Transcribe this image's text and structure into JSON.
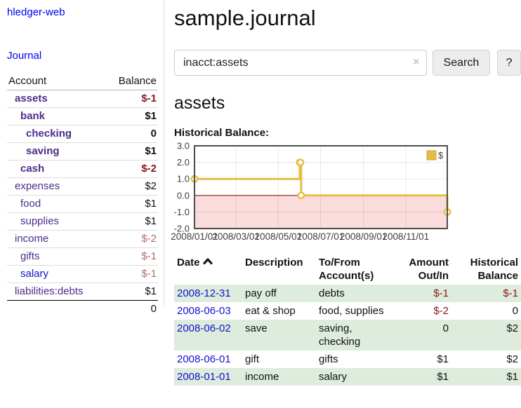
{
  "colors": {
    "link_purple": "#4d2d8c",
    "link_blue": "#1212cc",
    "neg_bold": "#8c1515",
    "neg_soft": "#b36b6b",
    "text_dark": "#111111",
    "row_green": "#ddecdd",
    "chart_line": "#e6bd45",
    "chart_fill_negative": "#fbdcdc",
    "zero_line": "#8c1a1a",
    "axis_text": "#3c3c3c"
  },
  "sidebar": {
    "brand": "hledger-web",
    "nav": {
      "journal": "Journal"
    },
    "accounts": {
      "col_account": "Account",
      "col_balance": "Balance",
      "rows": [
        {
          "name": "assets",
          "level": 1,
          "bold": true,
          "balance": "$-1",
          "negative": true,
          "blue": false
        },
        {
          "name": "bank",
          "level": 2,
          "bold": true,
          "balance": "$1",
          "negative": false,
          "blue": false
        },
        {
          "name": "checking",
          "level": 3,
          "bold": true,
          "balance": "0",
          "negative": false,
          "blue": false
        },
        {
          "name": "saving",
          "level": 3,
          "bold": true,
          "balance": "$1",
          "negative": false,
          "blue": false
        },
        {
          "name": "cash",
          "level": 2,
          "bold": true,
          "balance": "$-2",
          "negative": true,
          "blue": false
        },
        {
          "name": "expenses",
          "level": 1,
          "bold": false,
          "balance": "$2",
          "negative": false,
          "blue": false
        },
        {
          "name": "food",
          "level": 2,
          "bold": false,
          "balance": "$1",
          "negative": false,
          "blue": false
        },
        {
          "name": "supplies",
          "level": 2,
          "bold": false,
          "balance": "$1",
          "negative": false,
          "blue": false
        },
        {
          "name": "income",
          "level": 1,
          "bold": false,
          "balance": "$-2",
          "negative": true,
          "blue": false
        },
        {
          "name": "gifts",
          "level": 2,
          "bold": false,
          "balance": "$-1",
          "negative": true,
          "blue": false
        },
        {
          "name": "salary",
          "level": 2,
          "bold": false,
          "balance": "$-1",
          "negative": true,
          "blue": true
        },
        {
          "name": "liabilities:debts",
          "level": 1,
          "bold": false,
          "balance": "$1",
          "negative": false,
          "blue": false
        }
      ],
      "total": "0"
    }
  },
  "main": {
    "title": "sample.journal",
    "search": {
      "value": "inacct:assets",
      "clear_icon": "×",
      "button": "Search",
      "help_button": "?"
    },
    "account_heading": "assets",
    "chart_title": "Historical Balance:"
  },
  "chart_data": {
    "type": "line",
    "step": true,
    "title": "Historical Balance:",
    "series": [
      {
        "name": "$",
        "color": "#e6bd45",
        "points": [
          [
            "2008-01-01",
            1
          ],
          [
            "2008-06-01",
            2
          ],
          [
            "2008-06-02",
            2
          ],
          [
            "2008-06-03",
            0
          ],
          [
            "2008-12-31",
            -1
          ]
        ]
      }
    ],
    "xlim": [
      "2008-01-01",
      "2008-12-31"
    ],
    "ylim": [
      -2,
      3
    ],
    "y_tick_values": [
      3,
      2,
      1,
      0,
      -1,
      -2
    ],
    "y_tick_labels": [
      "3.0",
      "2.0",
      "1.0",
      "0.0",
      "-1.0",
      "-2.0"
    ],
    "x_ticks": [
      {
        "label": "2008/01/01",
        "date": "2008-01-01"
      },
      {
        "label": "2008/03/01",
        "date": "2008-03-01"
      },
      {
        "label": "2008/05/01",
        "date": "2008-05-01"
      },
      {
        "label": "2008/07/01",
        "date": "2008-07-01"
      },
      {
        "label": "2008/09/01",
        "date": "2008-09-01"
      },
      {
        "label": "2008/11/01",
        "date": "2008-11-01"
      }
    ],
    "legend": {
      "label": "$",
      "position": "top-right"
    },
    "grid": true,
    "negative_region_shaded": true
  },
  "register": {
    "headers": {
      "date": "Date",
      "description": "Description",
      "accounts_line1": "To/From",
      "accounts_line2": "Account(s)",
      "amount_line1": "Amount",
      "amount_line2": "Out/In",
      "balance_line1": "Historical",
      "balance_line2": "Balance"
    },
    "sort": "ascending",
    "rows": [
      {
        "date": "2008-12-31",
        "description": "pay off",
        "accounts": "debts",
        "amount": "$-1",
        "amount_negative": true,
        "balance": "$-1",
        "balance_negative": true,
        "shaded": true
      },
      {
        "date": "2008-06-03",
        "description": "eat & shop",
        "accounts": "food, supplies",
        "amount": "$-2",
        "amount_negative": true,
        "balance": "0",
        "balance_negative": false,
        "shaded": false
      },
      {
        "date": "2008-06-02",
        "description": "save",
        "accounts": "saving, checking",
        "amount": "0",
        "amount_negative": false,
        "balance": "$2",
        "balance_negative": false,
        "shaded": true
      },
      {
        "date": "2008-06-01",
        "description": "gift",
        "accounts": "gifts",
        "amount": "$1",
        "amount_negative": false,
        "balance": "$2",
        "balance_negative": false,
        "shaded": false
      },
      {
        "date": "2008-01-01",
        "description": "income",
        "accounts": "salary",
        "amount": "$1",
        "amount_negative": false,
        "balance": "$1",
        "balance_negative": false,
        "shaded": true
      }
    ]
  }
}
